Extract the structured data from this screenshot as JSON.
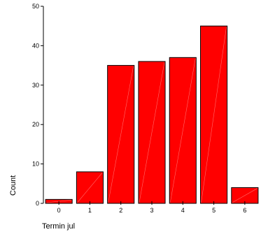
{
  "chart_data": {
    "type": "bar",
    "categories": [
      "0",
      "1",
      "2",
      "3",
      "4",
      "5",
      "6"
    ],
    "values": [
      1,
      8,
      35,
      36,
      37,
      45,
      4
    ],
    "xlabel": "Termin jul",
    "ylabel": "Count",
    "ylim": [
      0,
      50
    ],
    "yticks": [
      0,
      10,
      20,
      30,
      40,
      50
    ],
    "bar_color": "#ff0000",
    "bar_edge_color": "#000000",
    "grid": false
  }
}
